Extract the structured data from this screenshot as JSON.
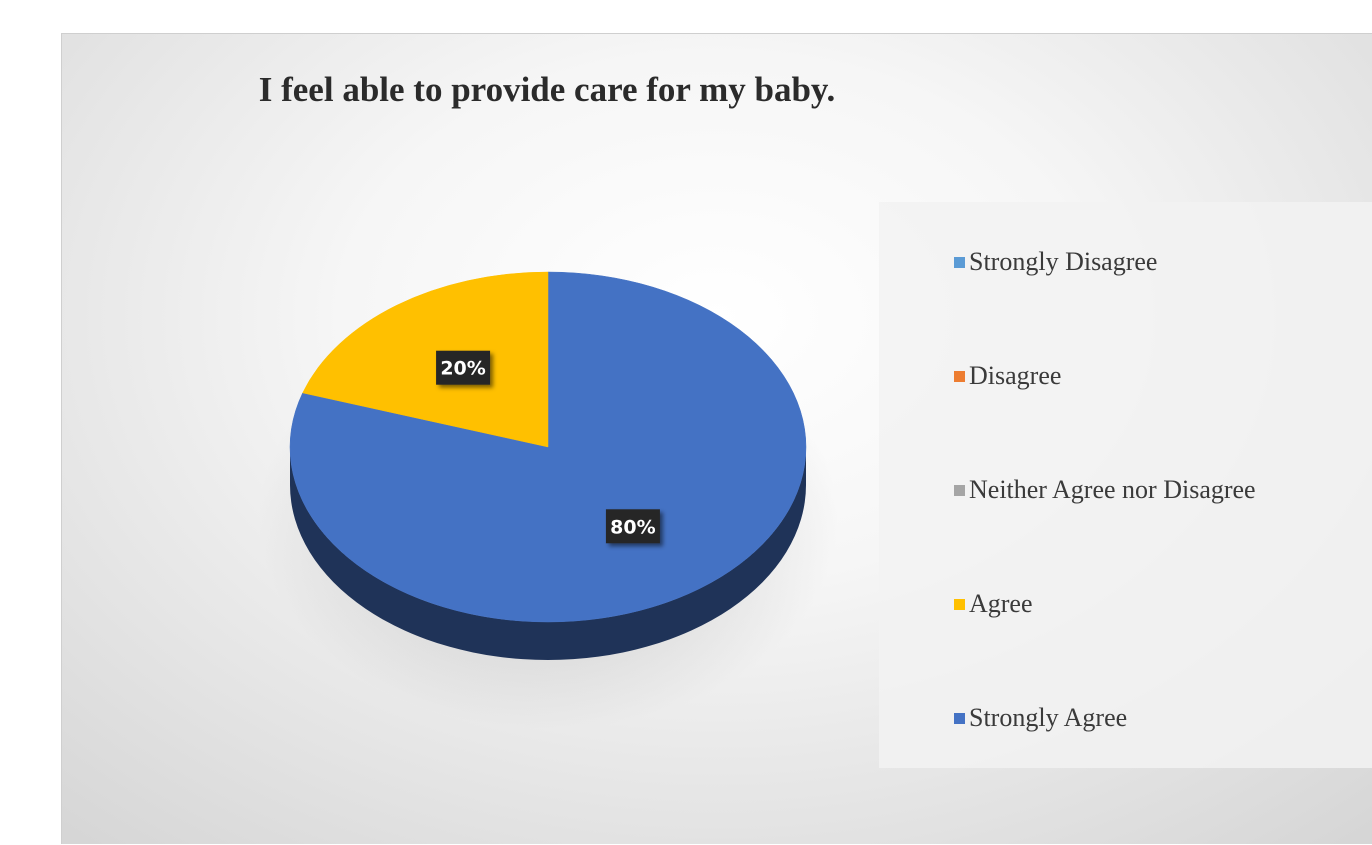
{
  "chart_data": {
    "type": "pie",
    "title": "I feel able to provide care for my baby.",
    "categories": [
      "Strongly Disagree",
      "Disagree",
      "Neither Agree nor Disagree",
      "Agree",
      "Strongly Agree"
    ],
    "values": [
      0,
      0,
      0,
      20,
      80
    ],
    "value_labels": [
      "",
      "",
      "",
      "20%",
      "80%"
    ],
    "colors": [
      "#5b9bd5",
      "#ed7d31",
      "#a5a5a5",
      "#ffc000",
      "#4472c4"
    ],
    "legend_position": "right",
    "style": "3D pie"
  }
}
